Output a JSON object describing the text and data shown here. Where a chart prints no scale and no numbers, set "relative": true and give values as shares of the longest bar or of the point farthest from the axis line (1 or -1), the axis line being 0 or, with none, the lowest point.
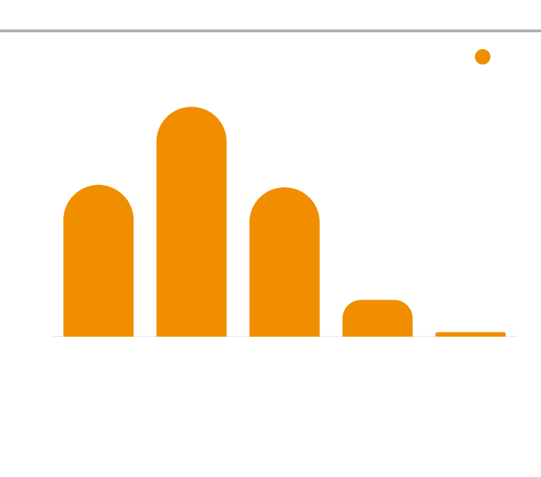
{
  "chart_data": {
    "type": "bar",
    "relative": true,
    "categories": [
      null,
      null,
      null,
      null,
      null
    ],
    "values": [
      0.66,
      1,
      0.65,
      0.16,
      0.02
    ],
    "color": "#f18e00"
  }
}
